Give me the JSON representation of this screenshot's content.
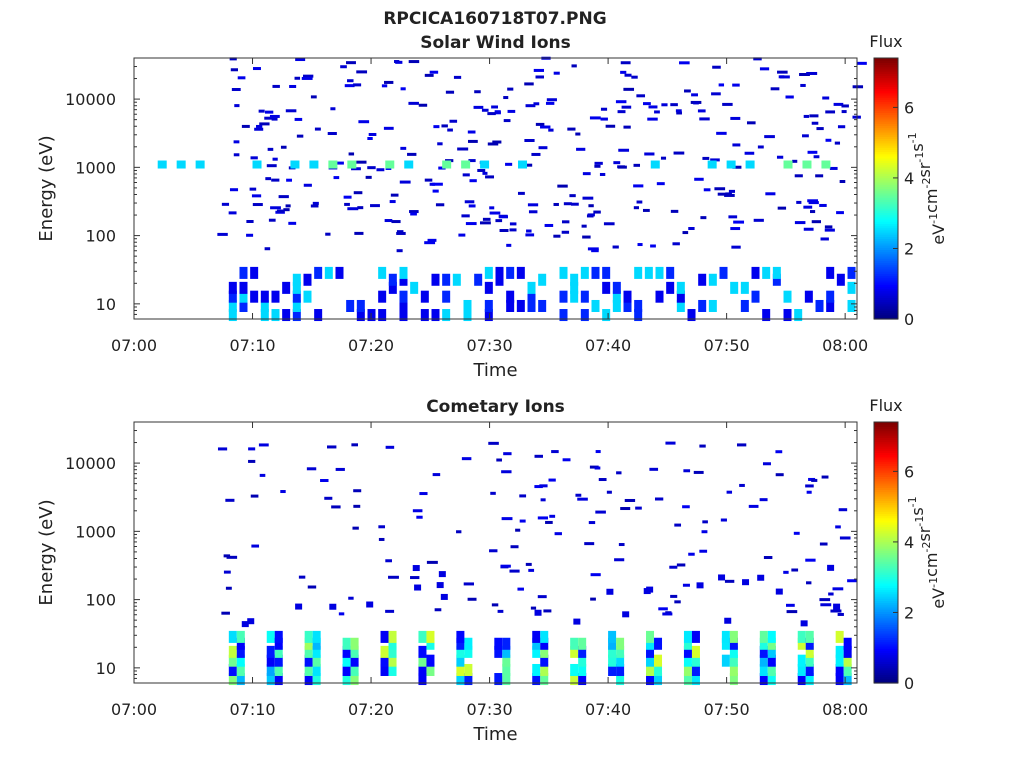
{
  "figure": {
    "title": "RPCICA160718T07.PNG"
  },
  "chart_data": [
    {
      "type": "heatmap",
      "title": "Solar Wind Ions",
      "xlabel": "Time",
      "ylabel": "Energy (eV)",
      "x_ticks": [
        "07:00",
        "07:10",
        "07:20",
        "07:30",
        "07:40",
        "07:50",
        "08:00"
      ],
      "x_range": [
        "07:00",
        "08:01"
      ],
      "y_scale": "log",
      "y_ticks": [
        "10",
        "100",
        "1000",
        "10000"
      ],
      "y_range": [
        6,
        40000
      ],
      "colorbar": {
        "label": "Flux",
        "unit": "eV-1 cm-2 sr-1 s-1",
        "range": [
          0,
          7.4
        ],
        "ticks": [
          "0",
          "2",
          "4",
          "6"
        ],
        "colormap": "jet"
      },
      "grid": false,
      "pattern": {
        "band_1000eV": {
          "energy_eV": 1100,
          "start": "07:02",
          "end": "08:01",
          "levels": [
            2.5,
            3.5
          ]
        },
        "sparse_scatter": {
          "start": "07:07",
          "end": "08:01",
          "energy_range_eV": [
            60,
            40000
          ],
          "level": 0.6
        },
        "low_energy_blocks": {
          "start": "07:08",
          "end": "08:01",
          "energy_range_eV": [
            6,
            30
          ],
          "levels": [
            0.8,
            1.2,
            2.5
          ]
        }
      }
    },
    {
      "type": "heatmap",
      "title": "Cometary Ions",
      "xlabel": "Time",
      "ylabel": "Energy (eV)",
      "x_ticks": [
        "07:00",
        "07:10",
        "07:20",
        "07:30",
        "07:40",
        "07:50",
        "08:00"
      ],
      "x_range": [
        "07:00",
        "08:01"
      ],
      "y_scale": "log",
      "y_ticks": [
        "10",
        "100",
        "1000",
        "10000"
      ],
      "y_range": [
        6,
        40000
      ],
      "colorbar": {
        "label": "Flux",
        "unit": "eV-1 cm-2 sr-1 s-1",
        "range": [
          0,
          7.4
        ],
        "ticks": [
          "0",
          "2",
          "4",
          "6"
        ],
        "colormap": "jet"
      },
      "grid": false,
      "pattern": {
        "sparse_scatter": {
          "start": "07:07",
          "end": "08:01",
          "energy_range_eV": [
            60,
            20000
          ],
          "level": 0.6
        },
        "low_energy_columns": {
          "start": "07:08",
          "end": "08:01",
          "period_min": 3.2,
          "energy_range_eV": [
            6,
            30
          ],
          "levels": [
            2.5,
            3.0,
            1.0,
            3.8
          ]
        }
      }
    }
  ]
}
